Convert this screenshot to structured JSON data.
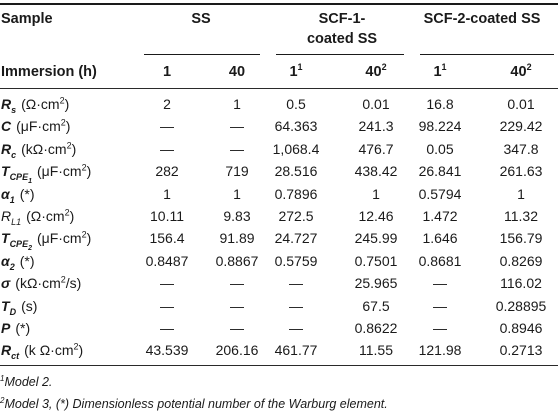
{
  "header": {
    "sample_label": "Sample",
    "groups": [
      "SS",
      "SCF-1-coated SS",
      "SCF-2-coated SS"
    ],
    "group_line1": [
      "SS",
      "SCF-1-",
      "SCF-2-coated SS"
    ],
    "group_line2": [
      "",
      "coated SS",
      ""
    ],
    "immersion_label": "Immersion (h)",
    "immersion": [
      {
        "value": "1",
        "sup": ""
      },
      {
        "value": "40",
        "sup": ""
      },
      {
        "value": "1",
        "sup": "1"
      },
      {
        "value": "40",
        "sup": "2"
      },
      {
        "value": "1",
        "sup": "1"
      },
      {
        "value": "40",
        "sup": "2"
      }
    ]
  },
  "rows": [
    {
      "symbol": "R",
      "subscript": "s",
      "unit": "(Ω·cm",
      "unit_sup": "2",
      "unit_tail": ")",
      "bold": true,
      "values": [
        "2",
        "1",
        "0.5",
        "0.01",
        "16.8",
        "0.01"
      ]
    },
    {
      "symbol": "C",
      "subscript": "",
      "unit": "(μF·cm",
      "unit_sup": "2",
      "unit_tail": ")",
      "bold": true,
      "values": [
        "—",
        "—",
        "64.363",
        "241.3",
        "98.224",
        "229.42"
      ]
    },
    {
      "symbol": "R",
      "subscript": "c",
      "unit": "(kΩ·cm",
      "unit_sup": "2",
      "unit_tail": ")",
      "bold": true,
      "values": [
        "—",
        "—",
        "1,068.4",
        "476.7",
        "0.05",
        "347.8"
      ]
    },
    {
      "symbol": "T",
      "subscript": "CPE",
      "subsub": "1",
      "unit": "(μF·cm",
      "unit_sup": "2",
      "unit_tail": ")",
      "bold": true,
      "values": [
        "282",
        "719",
        "28.516",
        "438.42",
        "26.841",
        "261.63"
      ]
    },
    {
      "symbol": "α",
      "subscript": "1",
      "unit": "(*)",
      "unit_sup": "",
      "unit_tail": "",
      "bold": true,
      "values": [
        "1",
        "1",
        "0.7896",
        "1",
        "0.5794",
        "1"
      ]
    },
    {
      "symbol": "R",
      "subscript": "L1",
      "unit": "(Ω·cm",
      "unit_sup": "2",
      "unit_tail": ")",
      "bold": false,
      "values": [
        "10.11",
        "9.83",
        "272.5",
        "12.46",
        "1.472",
        "11.32"
      ]
    },
    {
      "symbol": "T",
      "subscript": "CPE",
      "subsub": "2",
      "unit": "(μF·cm",
      "unit_sup": "2",
      "unit_tail": ")",
      "bold": true,
      "values": [
        "156.4",
        "91.89",
        "24.727",
        "245.99",
        "1.646",
        "156.79"
      ]
    },
    {
      "symbol": "α",
      "subscript": "2",
      "unit": "(*)",
      "unit_sup": "",
      "unit_tail": "",
      "bold": true,
      "values": [
        "0.8487",
        "0.8867",
        "0.5759",
        "0.7501",
        "0.8681",
        "0.8269"
      ]
    },
    {
      "symbol": "σ",
      "subscript": "",
      "unit": "(kΩ·cm",
      "unit_sup": "2",
      "unit_tail": "/s)",
      "bold": true,
      "values": [
        "—",
        "—",
        "—",
        "25.965",
        "—",
        "116.02"
      ]
    },
    {
      "symbol": "T",
      "subscript": "D",
      "unit": "(s)",
      "unit_sup": "",
      "unit_tail": "",
      "bold": true,
      "values": [
        "—",
        "—",
        "—",
        "67.5",
        "—",
        "0.28895"
      ]
    },
    {
      "symbol": "P",
      "subscript": "",
      "unit": "(*)",
      "unit_sup": "",
      "unit_tail": "",
      "bold": true,
      "values": [
        "—",
        "—",
        "—",
        "0.8622",
        "—",
        "0.8946"
      ]
    },
    {
      "symbol": "R",
      "subscript": "ct",
      "unit": "(k Ω·cm",
      "unit_sup": "2",
      "unit_tail": ")",
      "bold": true,
      "values": [
        "43.539",
        "206.16",
        "461.77",
        "11.55",
        "121.98",
        "0.2713"
      ]
    }
  ],
  "notes": [
    {
      "sup": "1",
      "text": "Model 2."
    },
    {
      "sup": "2",
      "text": "Model 3, (*) Dimensionless potential number of the Warburg element."
    }
  ]
}
